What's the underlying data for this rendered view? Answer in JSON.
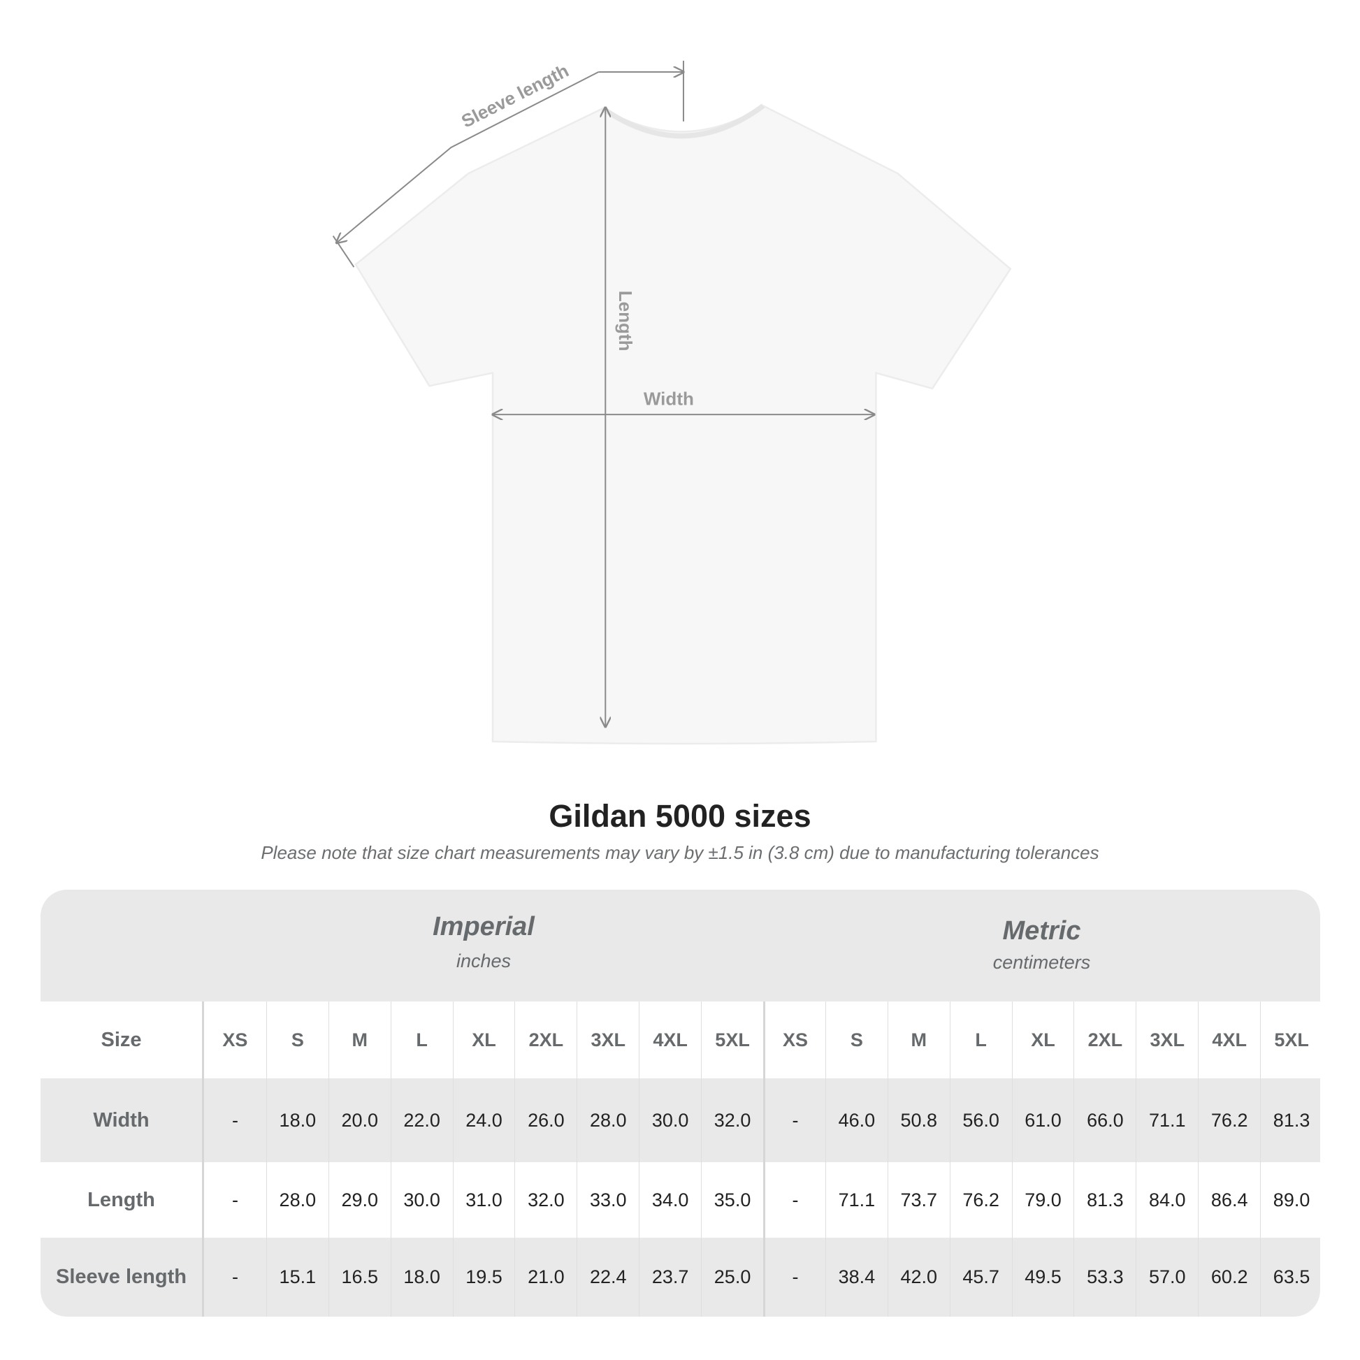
{
  "diagram": {
    "labels": {
      "sleeve": "Sleeve length",
      "length": "Length",
      "width": "Width"
    },
    "shirt_color": "#f7f7f7",
    "line_color": "#8a8a8a"
  },
  "title": "Gildan 5000 sizes",
  "subtitle": "Please note that size chart measurements may vary by ±1.5 in (3.8 cm) due to manufacturing tolerances",
  "table": {
    "imperial": {
      "name": "Imperial",
      "unit": "inches"
    },
    "metric": {
      "name": "Metric",
      "unit": "centimeters"
    },
    "size_label": "Size",
    "sizes": [
      "XS",
      "S",
      "M",
      "L",
      "XL",
      "2XL",
      "3XL",
      "4XL",
      "5XL"
    ],
    "rows": [
      {
        "label": "Width",
        "imperial": [
          "-",
          "18.0",
          "20.0",
          "22.0",
          "24.0",
          "26.0",
          "28.0",
          "30.0",
          "32.0"
        ],
        "metric": [
          "-",
          "46.0",
          "50.8",
          "56.0",
          "61.0",
          "66.0",
          "71.1",
          "76.2",
          "81.3"
        ]
      },
      {
        "label": "Length",
        "imperial": [
          "-",
          "28.0",
          "29.0",
          "30.0",
          "31.0",
          "32.0",
          "33.0",
          "34.0",
          "35.0"
        ],
        "metric": [
          "-",
          "71.1",
          "73.7",
          "76.2",
          "79.0",
          "81.3",
          "84.0",
          "86.4",
          "89.0"
        ]
      },
      {
        "label": "Sleeve length",
        "imperial": [
          "-",
          "15.1",
          "16.5",
          "18.0",
          "19.5",
          "21.0",
          "22.4",
          "23.7",
          "25.0"
        ],
        "metric": [
          "-",
          "38.4",
          "42.0",
          "45.7",
          "49.5",
          "53.3",
          "57.0",
          "60.2",
          "63.5"
        ]
      }
    ]
  }
}
